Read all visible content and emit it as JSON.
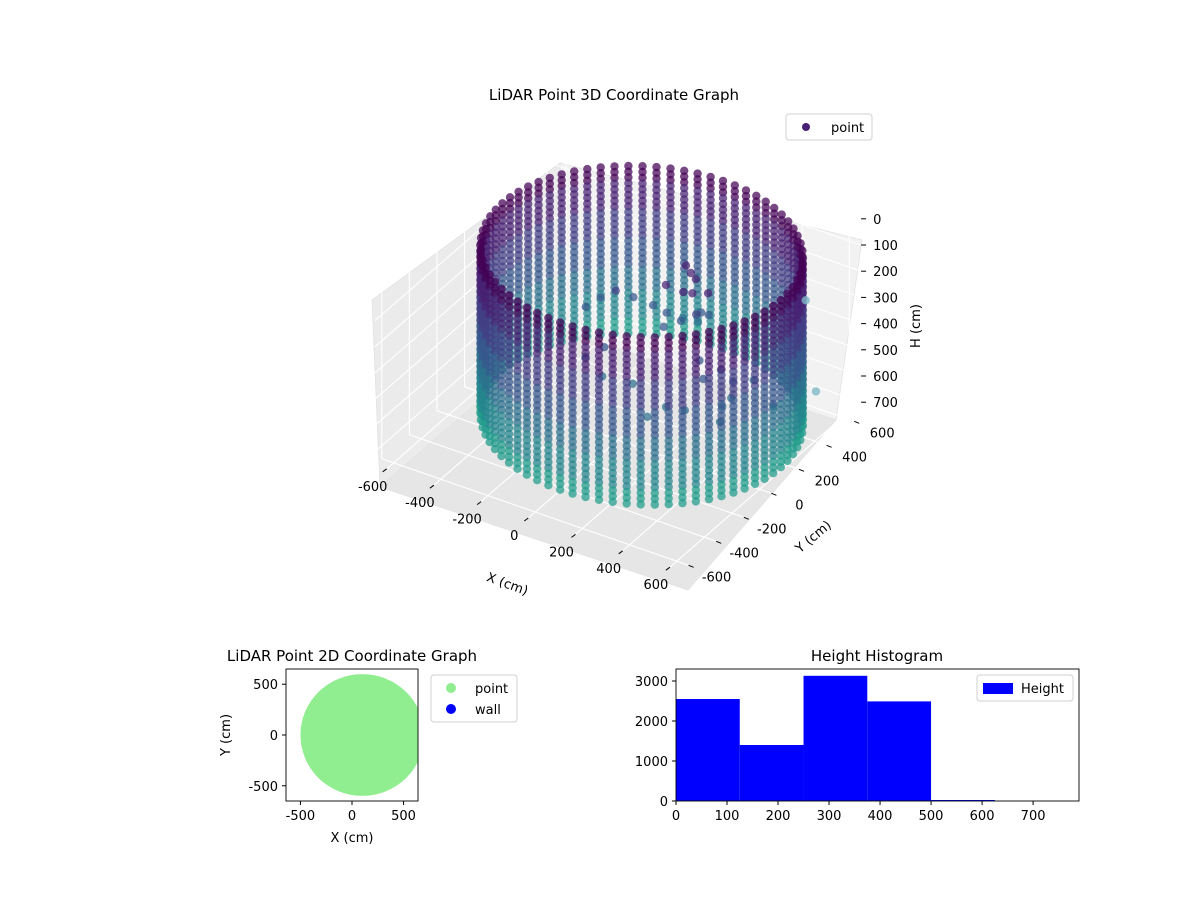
{
  "chart_data": [
    {
      "type": "scatter",
      "projection": "3d",
      "title": "LiDAR Point 3D Coordinate Graph",
      "xlabel": "X (cm)",
      "ylabel": "Y (cm)",
      "zlabel": "H (cm)",
      "xticks": [
        -600,
        -400,
        -200,
        0,
        200,
        400,
        600
      ],
      "yticks": [
        -600,
        -400,
        -200,
        0,
        200,
        400,
        600
      ],
      "zticks": [
        0,
        100,
        200,
        300,
        400,
        500,
        600,
        700
      ],
      "xlim": [
        -650,
        650
      ],
      "ylim": [
        -650,
        650
      ],
      "zlim": [
        750,
        0
      ],
      "z_inverted": true,
      "colormap": "viridis",
      "legend": [
        {
          "label": "point",
          "color": "#482173"
        }
      ],
      "legend_position": "top-right",
      "grid": true,
      "series": [
        {
          "name": "point",
          "shape": "ring-wall",
          "center": [
            100,
            0
          ],
          "radius": 590,
          "height_range": [
            0,
            640
          ],
          "interior_object_points": [
            [
              250,
              100,
              80
            ],
            [
              260,
              120,
              110
            ],
            [
              230,
              80,
              150
            ],
            [
              280,
              60,
              130
            ],
            [
              200,
              150,
              90
            ],
            [
              300,
              140,
              160
            ],
            [
              180,
              40,
              120
            ],
            [
              320,
              20,
              180
            ],
            [
              -80,
              120,
              260
            ],
            [
              -40,
              180,
              300
            ],
            [
              20,
              220,
              330
            ],
            [
              60,
              250,
              360
            ],
            [
              100,
              300,
              390
            ],
            [
              140,
              340,
              410
            ],
            [
              -120,
              80,
              280
            ],
            [
              -160,
              40,
              310
            ],
            [
              380,
              -60,
              300
            ],
            [
              420,
              -100,
              340
            ],
            [
              460,
              -40,
              320
            ],
            [
              500,
              -20,
              360
            ],
            [
              540,
              60,
              380
            ],
            [
              400,
              -200,
              420
            ],
            [
              350,
              -250,
              400
            ],
            [
              300,
              -300,
              430
            ],
            [
              250,
              230,
              300
            ],
            [
              200,
              260,
              320
            ],
            [
              150,
              200,
              340
            ],
            [
              100,
              160,
              360
            ],
            [
              0,
              -100,
              350
            ],
            [
              -50,
              -150,
              380
            ],
            [
              50,
              -200,
              400
            ],
            [
              150,
              -150,
              420
            ],
            [
              500,
              -100,
              420
            ],
            [
              520,
              -150,
              450
            ],
            [
              480,
              0,
              440
            ],
            [
              600,
              100,
              480
            ]
          ],
          "outlier_points": [
            [
              620,
              300,
              160
            ],
            [
              640,
              340,
              520
            ]
          ]
        }
      ]
    },
    {
      "type": "scatter",
      "title": "LiDAR Point 2D Coordinate Graph",
      "xlabel": "X (cm)",
      "ylabel": "Y (cm)",
      "xticks": [
        -500,
        0,
        500
      ],
      "yticks": [
        -500,
        0,
        500
      ],
      "xlim": [
        -640,
        640
      ],
      "ylim": [
        -650,
        650
      ],
      "legend_position": "outside-right",
      "series": [
        {
          "name": "point",
          "color": "#90ee90",
          "shape": "disk",
          "center": [
            100,
            0
          ],
          "radius": 600
        },
        {
          "name": "wall",
          "color": "#0000ff",
          "points": []
        }
      ]
    },
    {
      "type": "bar",
      "histogram": true,
      "title": "Height Histogram",
      "xlabel": "",
      "ylabel": "",
      "bin_edges": [
        0,
        125,
        250,
        375,
        500,
        625,
        750
      ],
      "values": [
        2550,
        1400,
        3130,
        2490,
        25,
        0
      ],
      "xticks": [
        0,
        100,
        200,
        300,
        400,
        500,
        600,
        700
      ],
      "yticks": [
        0,
        1000,
        2000,
        3000
      ],
      "xlim": [
        0,
        790
      ],
      "ylim": [
        0,
        3300
      ],
      "legend": [
        {
          "label": "Height",
          "color": "#0000ff"
        }
      ],
      "legend_position": "top-right",
      "color": "#0000ff"
    }
  ]
}
